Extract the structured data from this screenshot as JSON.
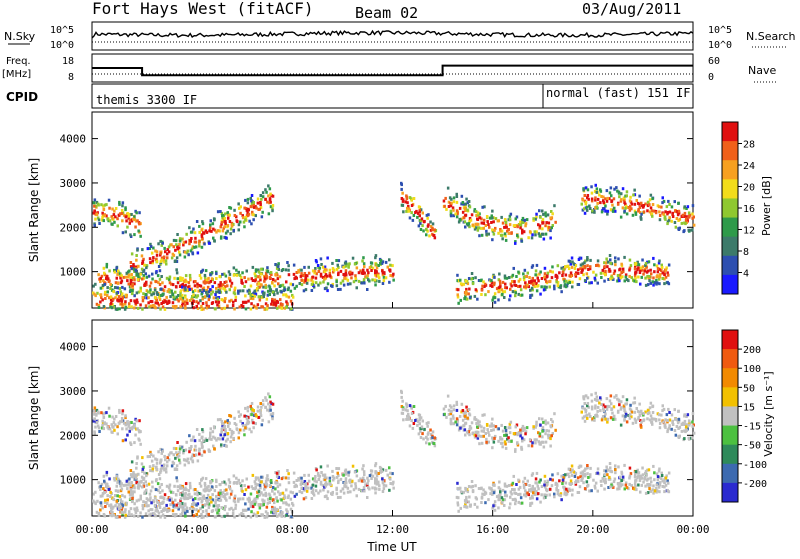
{
  "header": {
    "radar": "Fort Hays West (fitACF)",
    "beam": "Beam 02",
    "date": "03/Aug/2011"
  },
  "summary_panels": {
    "nsky_label": "N.Sky",
    "nsky_ticks": [
      "10^5",
      "10^0"
    ],
    "nsearch_label": "N.Search",
    "nsearch_ticks": [
      "10^5",
      "10^0"
    ],
    "freq_label_1": "Freq.",
    "freq_label_2": "[MHz]",
    "freq_ticks": [
      "18",
      "8"
    ],
    "nave_label": "Nave",
    "nave_ticks": [
      "60",
      "0"
    ],
    "cpid_label": "CPID",
    "cpid_segments": [
      {
        "label": "themis 3300 IF",
        "start_hour": 0
      },
      {
        "label": "normal (fast) 151 IF",
        "start_hour": 18
      }
    ]
  },
  "axes": {
    "ylabel": "Slant Range [km]",
    "yticks": [
      "4000",
      "3000",
      "2000",
      "1000"
    ],
    "xlabel": "Time UT",
    "xticks": [
      "00:00",
      "04:00",
      "08:00",
      "12:00",
      "16:00",
      "20:00",
      "00:00"
    ]
  },
  "colorbars": {
    "power": {
      "label": "Power [dB]",
      "ticks": [
        "28",
        "24",
        "20",
        "16",
        "12",
        "8",
        "4"
      ],
      "colors": [
        "#1a1aff",
        "#2d4fb0",
        "#3c7a6a",
        "#2e9a4a",
        "#8fc830",
        "#f2dc1a",
        "#f7a020",
        "#f0601a",
        "#e01010"
      ]
    },
    "velocity": {
      "label": "Velocity [m s⁻¹]",
      "ticks": [
        "200",
        "100",
        "50",
        "15",
        "-15",
        "-50",
        "-100",
        "-200"
      ],
      "colors": [
        "#2a2ad0",
        "#3c6ab0",
        "#2e8a5a",
        "#4cc040",
        "#c0c0c0",
        "#f2c000",
        "#f28a00",
        "#f05a10",
        "#e01010"
      ]
    }
  },
  "chart_data": {
    "type": "heatmap",
    "x_range_hours": [
      0,
      24
    ],
    "y_range_km": [
      180,
      4600
    ],
    "freq_mhz_steps": [
      {
        "from_hour": 0,
        "to_hour": 2,
        "value": 13
      },
      {
        "from_hour": 2,
        "to_hour": 14,
        "value": 10
      },
      {
        "from_hour": 14,
        "to_hour": 24,
        "value": 14
      }
    ],
    "scatter_bands": [
      {
        "name": "a",
        "x": [
          0.0,
          1.0,
          1.9
        ],
        "y": [
          2400,
          2300,
          2050
        ]
      },
      {
        "name": "b",
        "x": [
          1.5,
          3.0,
          4.5,
          6.2,
          7.2
        ],
        "y": [
          1150,
          1450,
          1900,
          2400,
          2700
        ]
      },
      {
        "name": "c",
        "x": [
          0.2,
          3.0,
          6.0,
          9.0,
          12.0
        ],
        "y": [
          900,
          700,
          800,
          950,
          1050
        ]
      },
      {
        "name": "d",
        "x": [
          0.0,
          4.0,
          8.0
        ],
        "y": [
          400,
          300,
          350
        ]
      },
      {
        "name": "e",
        "x": [
          12.3,
          13.0,
          13.7
        ],
        "y": [
          2700,
          2350,
          1800
        ]
      },
      {
        "name": "f",
        "x": [
          14.0,
          15.5,
          17.0,
          18.5
        ],
        "y": [
          2600,
          2150,
          1950,
          2200
        ]
      },
      {
        "name": "g",
        "x": [
          19.5,
          21.0,
          22.5,
          24.0
        ],
        "y": [
          2700,
          2600,
          2450,
          2200
        ]
      },
      {
        "name": "h",
        "x": [
          14.5,
          17.0,
          20.0,
          23.0
        ],
        "y": [
          600,
          750,
          1100,
          1000
        ]
      }
    ]
  }
}
